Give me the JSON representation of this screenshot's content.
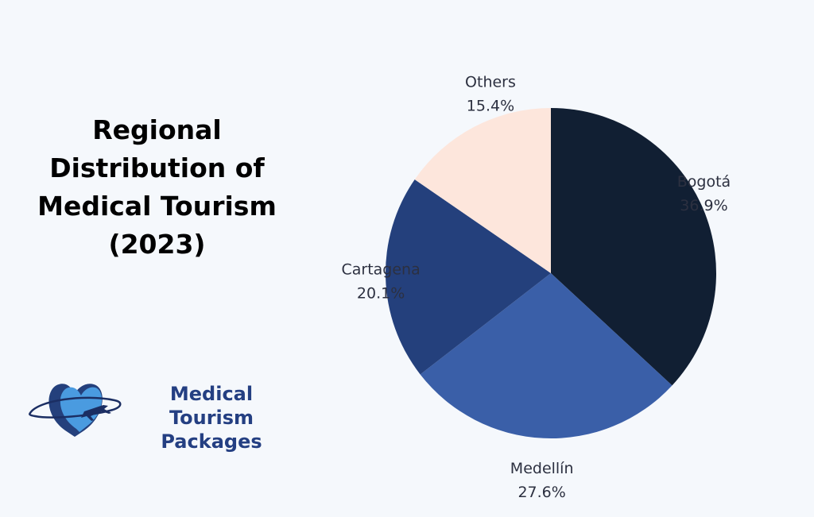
{
  "title_lines": [
    "Regional",
    "Distribution of",
    "Medical Tourism",
    "(2023)"
  ],
  "logo": {
    "line1": "Medical Tourism",
    "line2": "Packages",
    "brand_color": "#243f82",
    "heart_color": "#2f74c8"
  },
  "chart_data": {
    "type": "pie",
    "title": "Regional Distribution of Medical Tourism (2023)",
    "categories": [
      "Bogotá",
      "Medellín",
      "Cartagena",
      "Others"
    ],
    "values": [
      36.9,
      27.6,
      20.1,
      15.4
    ],
    "value_labels": [
      "36.9%",
      "27.6%",
      "20.1%",
      "15.4%"
    ],
    "colors": [
      "#111f33",
      "#3a5fa8",
      "#24407c",
      "#fde6dc"
    ],
    "start": "12 o'clock",
    "direction": "clockwise"
  }
}
